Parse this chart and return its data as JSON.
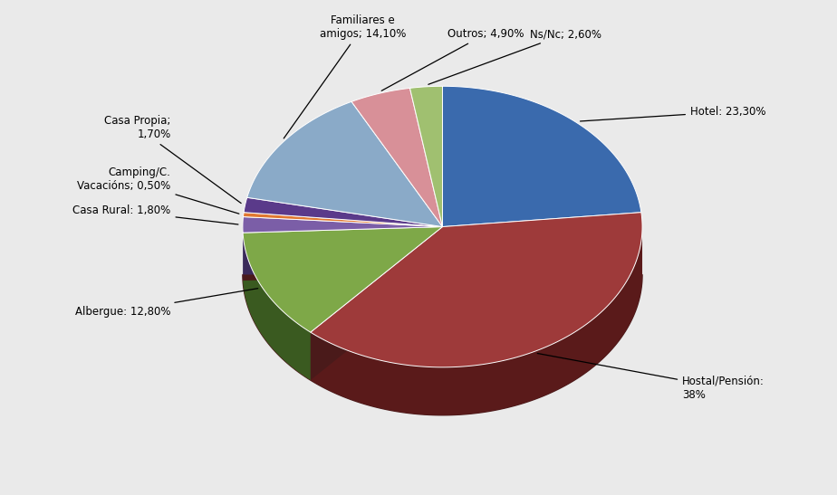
{
  "values": [
    23.3,
    38.0,
    12.8,
    1.8,
    0.5,
    1.7,
    14.1,
    4.9,
    2.6
  ],
  "colors": [
    "#3A6AAD",
    "#9E3A3A",
    "#7EA848",
    "#7B5EA7",
    "#E07830",
    "#5A3A8A",
    "#8AAAC8",
    "#D89098",
    "#A0C070"
  ],
  "shadow_colors": [
    "#1E3A6A",
    "#5A1A1A",
    "#3A5A20",
    "#3A2A5A",
    "#904020",
    "#2A1A4A",
    "#4A6A88",
    "#885060",
    "#507030"
  ],
  "labels": [
    "Hotel: 23,30%",
    "Hostal/Pensión:\n38%",
    "Albergue: 12,80%",
    "Casa Rural: 1,80%",
    "Camping/C.\nVacacións; 0,50%",
    "Casa Propia;\n1,70%",
    "Familiares e\namigos; 14,10%",
    "Outros; 4,90%",
    "Ns/Nc; 2,60%"
  ],
  "start_angle": 90,
  "figsize": [
    9.24,
    5.47
  ],
  "dpi": 100,
  "bg_color": "#EAEAEA"
}
